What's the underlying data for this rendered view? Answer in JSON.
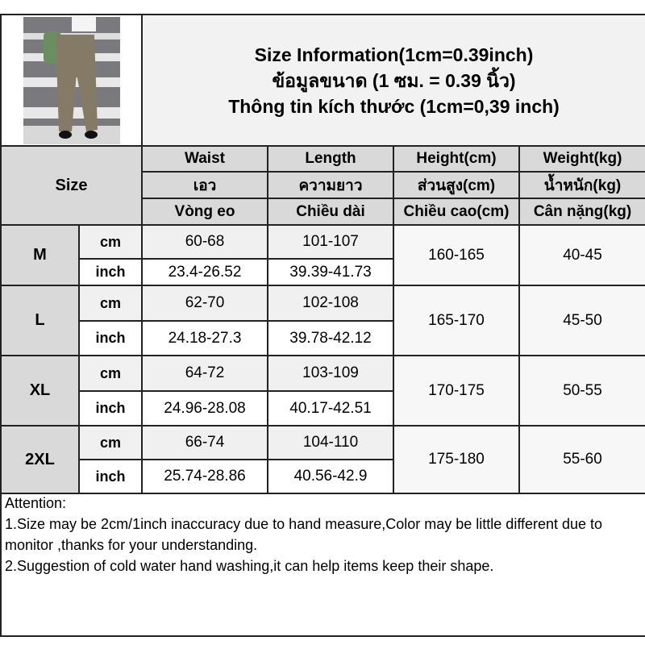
{
  "title": {
    "line1": "Size Information(1cm=0.39inch)",
    "line2": "ข้อมูลขนาด (1 ซม. = 0.39 นิ้ว)",
    "line3": "Thông tin kích thước (1cm=0,39 inch)"
  },
  "header": {
    "size": "Size",
    "columns": [
      {
        "en": "Waist",
        "th": "เอว",
        "vi": "Vòng eo"
      },
      {
        "en": "Length",
        "th": "ความยาว",
        "vi": "Chiều dài"
      },
      {
        "en": "Height(cm)",
        "th": "ส่วนสูง(cm)",
        "vi": "Chiều cao(cm)"
      },
      {
        "en": "Weight(kg)",
        "th": "น้ำหนัก(kg)",
        "vi": "Cân nặng(kg)"
      }
    ]
  },
  "units": {
    "cm": "cm",
    "inch": "inch"
  },
  "rows": [
    {
      "size": "M",
      "waist_cm": "60-68",
      "waist_inch": "23.4-26.52",
      "length_cm": "101-107",
      "length_inch": "39.39-41.73",
      "height": "160-165",
      "weight": "40-45"
    },
    {
      "size": "L",
      "waist_cm": "62-70",
      "waist_inch": "24.18-27.3",
      "length_cm": "102-108",
      "length_inch": "39.78-42.12",
      "height": "165-170",
      "weight": "45-50"
    },
    {
      "size": "XL",
      "waist_cm": "64-72",
      "waist_inch": "24.96-28.08",
      "length_cm": "103-109",
      "length_inch": "40.17-42.51",
      "height": "170-175",
      "weight": "50-55"
    },
    {
      "size": "2XL",
      "waist_cm": "66-74",
      "waist_inch": "25.74-28.86",
      "length_cm": "104-110",
      "length_inch": "40.56-42.9",
      "height": "175-180",
      "weight": "55-60"
    }
  ],
  "notes": {
    "heading": "Attention:",
    "line1": "1.Size may be 2cm/1inch inaccuracy due to hand measure,Color may be little different due to monitor ,thanks for your understanding.",
    "line2": "2.Suggestion of cold water hand washing,it can help items keep their shape."
  }
}
